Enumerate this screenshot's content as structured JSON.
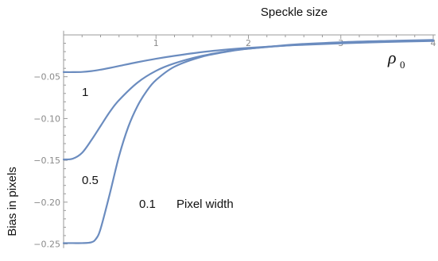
{
  "chart_data": {
    "type": "line",
    "title": "Speckle size",
    "xlabel": "ρ",
    "xlabel_subscript": "0",
    "ylabel": "Bias in pixels",
    "xlim": [
      0,
      4
    ],
    "ylim": [
      -0.255,
      0.005
    ],
    "grid": false,
    "legend": "none",
    "x_ticks": [
      "1",
      "2",
      "3",
      "4"
    ],
    "y_ticks": [
      "-0.05",
      "-0.10",
      "-0.15",
      "-0.20",
      "-0.25"
    ],
    "line_color": "#6b8cbf",
    "series_labels": [
      "1",
      "0.5",
      "0.1"
    ],
    "annotation": "Pixel width",
    "series": [
      {
        "x": [
          0,
          0.1,
          0.2,
          0.3,
          0.4,
          0.5,
          0.6,
          0.8,
          1.0,
          1.2,
          1.5,
          1.8,
          2.0,
          2.5,
          3.0,
          3.5,
          4.0
        ],
        "values": [
          -0.0445,
          -0.0445,
          -0.0443,
          -0.0433,
          -0.0416,
          -0.0395,
          -0.0372,
          -0.0326,
          -0.0285,
          -0.025,
          -0.0205,
          -0.0172,
          -0.0155,
          -0.0123,
          -0.0101,
          -0.0085,
          -0.0073
        ]
      },
      {
        "x": [
          0,
          0.1,
          0.2,
          0.3,
          0.4,
          0.5,
          0.6,
          0.8,
          1.0,
          1.2,
          1.5,
          1.8,
          2.0,
          2.5,
          3.0,
          3.5,
          4.0
        ],
        "values": [
          -0.149,
          -0.148,
          -0.141,
          -0.126,
          -0.109,
          -0.092,
          -0.078,
          -0.057,
          -0.043,
          -0.034,
          -0.025,
          -0.019,
          -0.0165,
          -0.012,
          -0.0095,
          -0.0078,
          -0.0065
        ]
      },
      {
        "x": [
          0,
          0.1,
          0.2,
          0.3,
          0.35,
          0.4,
          0.5,
          0.6,
          0.7,
          0.8,
          0.9,
          1.0,
          1.2,
          1.5,
          1.8,
          2.0,
          2.5,
          3.0,
          3.5,
          4.0
        ],
        "values": [
          -0.249,
          -0.249,
          -0.249,
          -0.248,
          -0.244,
          -0.232,
          -0.19,
          -0.145,
          -0.11,
          -0.085,
          -0.067,
          -0.054,
          -0.038,
          -0.026,
          -0.0195,
          -0.0165,
          -0.0115,
          -0.0088,
          -0.0072,
          -0.006
        ]
      }
    ]
  }
}
